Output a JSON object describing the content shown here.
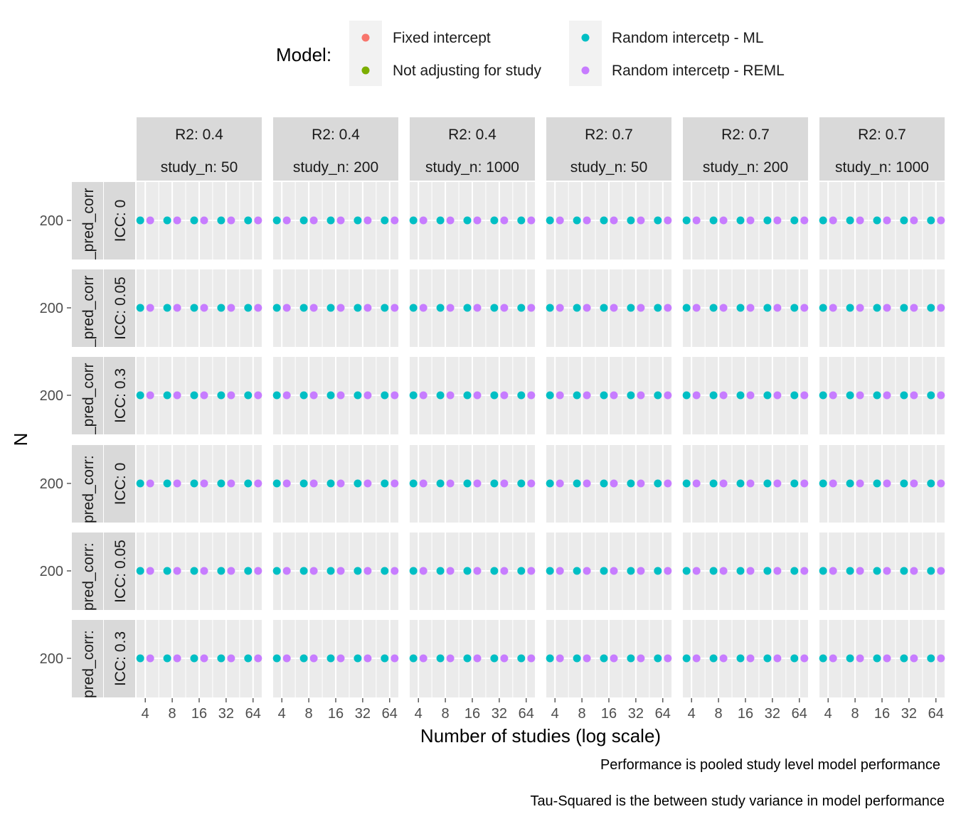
{
  "chart_data": {
    "type": "scatter",
    "title": "",
    "xlabel": "Number of studies (log scale)",
    "ylabel": "N",
    "x_scale": "log2",
    "x_ticks": [
      4,
      8,
      16,
      32,
      64
    ],
    "x_tick_labels": [
      "4",
      "8",
      "16",
      "32",
      "64"
    ],
    "y_ticks": [
      200
    ],
    "y_tick_labels": [
      "200"
    ],
    "grid": true,
    "legend": {
      "title": "Model:",
      "placement": "top",
      "entries": [
        {
          "label": "Fixed intercept",
          "color": "#F8766D"
        },
        {
          "label": "Not adjusting for study",
          "color": "#7CAE00"
        },
        {
          "label": "Random intercetp - ML",
          "color": "#00BFC4"
        },
        {
          "label": "Random intercetp - REML",
          "color": "#C77CFF"
        }
      ]
    },
    "facet_columns": [
      {
        "line1": "R2: 0.4",
        "line2": "study_n: 50"
      },
      {
        "line1": "R2: 0.4",
        "line2": "study_n: 200"
      },
      {
        "line1": "R2: 0.4",
        "line2": "study_n: 1000"
      },
      {
        "line1": "R2: 0.7",
        "line2": "study_n: 50"
      },
      {
        "line1": "R2: 0.7",
        "line2": "study_n: 200"
      },
      {
        "line1": "R2: 0.7",
        "line2": "study_n: 1000"
      }
    ],
    "facet_rows": [
      {
        "outer": "_pred_corr",
        "inner": "ICC: 0"
      },
      {
        "outer": "_pred_corr",
        "inner": "ICC: 0.05"
      },
      {
        "outer": "_pred_corr",
        "inner": "ICC: 0.3"
      },
      {
        "outer": "pred_corr:",
        "inner": "ICC: 0"
      },
      {
        "outer": "pred_corr:",
        "inner": "ICC: 0.05"
      },
      {
        "outer": "pred_corr:",
        "inner": "ICC: 0.3"
      }
    ],
    "series": [
      {
        "name": "Random intercetp - ML",
        "color": "#00BFC4",
        "x": [
          4,
          8,
          16,
          32,
          64
        ],
        "y": [
          200,
          200,
          200,
          200,
          200
        ]
      },
      {
        "name": "Random intercetp - REML",
        "color": "#C77CFF",
        "x": [
          4,
          8,
          16,
          32,
          64
        ],
        "y": [
          200,
          200,
          200,
          200,
          200
        ]
      }
    ],
    "captions": [
      "Performance is pooled study level model performance",
      "Tau-Squared is the between study variance in model performance"
    ],
    "colors": {
      "panel_background": "#EBEBEB",
      "strip_background": "#D9D9D9",
      "gridline": "#FFFFFF"
    }
  }
}
